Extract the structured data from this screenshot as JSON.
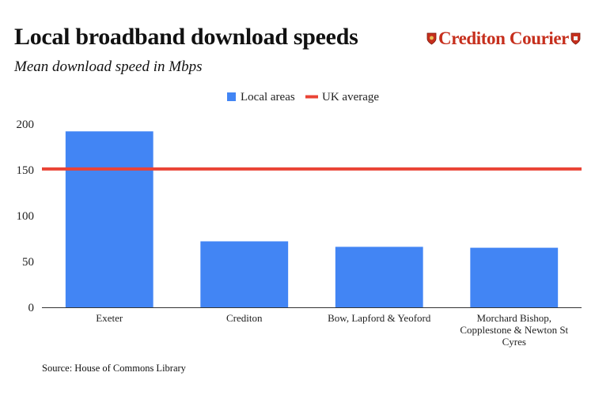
{
  "header": {
    "title": "Local broadband download speeds",
    "subtitle": "Mean download speed in Mbps",
    "brand": "Crediton Courier"
  },
  "footer": {
    "source": "Source: House of Commons Library"
  },
  "chart_data": {
    "type": "bar",
    "categories": [
      "Exeter",
      "Crediton",
      "Bow, Lapford & Yeoford",
      "Morchard Bishop, Copplestone & Newton St Cyres"
    ],
    "series": [
      {
        "name": "Local areas",
        "values": [
          192,
          72,
          66,
          65
        ],
        "color": "#4285f4"
      }
    ],
    "reference_line": {
      "name": "UK average",
      "value": 151,
      "color": "#ea4335"
    },
    "legend": [
      "Local areas",
      "UK average"
    ],
    "legend_position": "top",
    "yticks": [
      0,
      50,
      100,
      150,
      200
    ],
    "ylim": [
      0,
      200
    ],
    "grid": false,
    "title": "Local broadband download speeds",
    "subtitle": "Mean download speed in Mbps",
    "xlabel": "",
    "ylabel": ""
  }
}
